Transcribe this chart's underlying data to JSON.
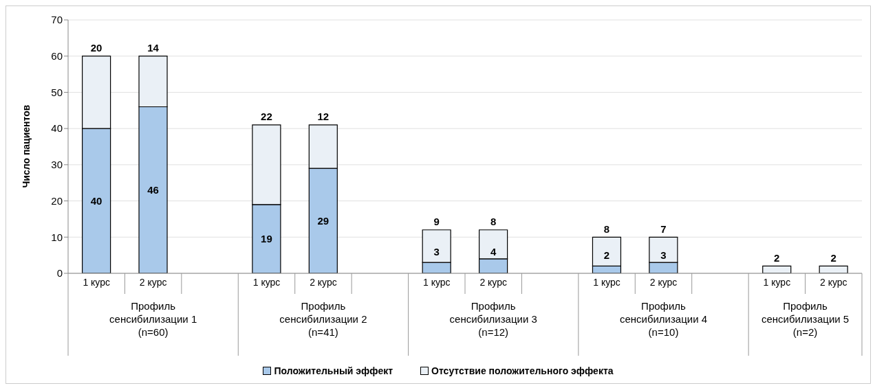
{
  "chart_data": {
    "type": "bar",
    "stacked": true,
    "ylabel": "Число пациентов",
    "categories": [
      "1 курс",
      "2 курс",
      null,
      "1 курс",
      "2 курс",
      null,
      "1 курс",
      "2 курс",
      null,
      "1 курс",
      "2 курс",
      null,
      "1 курс",
      "2 курс"
    ],
    "annotations": [
      "Профиль сенсибилизации 1 (n=60)",
      "Профиль сенсибилизации 2 (n=41)",
      "Профиль сенсибилизации 3 (n=12)",
      "Профиль сенсибилизации 4 (n=10)",
      "Профиль сенсибилизации 5 (n=2)"
    ],
    "series": [
      {
        "name": "Положительный эффект",
        "color": "#a9c9ea",
        "values": [
          40,
          46,
          null,
          19,
          29,
          null,
          3,
          4,
          null,
          2,
          3,
          null,
          0,
          0
        ],
        "value_labels": [
          "40",
          "46",
          null,
          "19",
          "29",
          null,
          "3",
          "4",
          null,
          "2",
          "3",
          null,
          null,
          null
        ]
      },
      {
        "name": "Отсутствие положительного эффекта",
        "color": "#eaf0f6",
        "values": [
          20,
          14,
          null,
          22,
          12,
          null,
          9,
          8,
          null,
          8,
          7,
          null,
          2,
          2
        ],
        "value_labels": [
          "20",
          "14",
          null,
          "22",
          "12",
          null,
          "9",
          "8",
          null,
          "8",
          "7",
          null,
          "2",
          "2"
        ]
      }
    ],
    "ylim": [
      0,
      70
    ],
    "yticks": [
      0,
      10,
      20,
      30,
      40,
      50,
      60,
      70
    ],
    "grid": "y",
    "legend": "bottom"
  }
}
